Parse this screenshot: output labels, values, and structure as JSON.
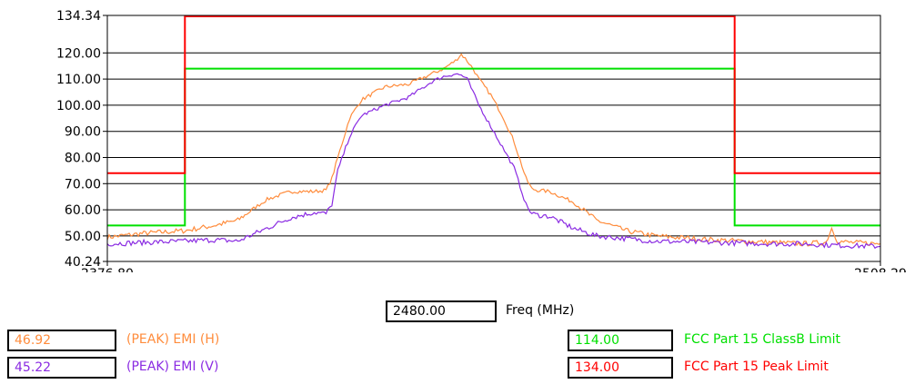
{
  "colors": {
    "emi_h": "#ff8c3c",
    "emi_v": "#8a2be2",
    "classb": "#00e000",
    "peak": "#ff0000",
    "grid": "#000000"
  },
  "cursor": {
    "value": "2480.00",
    "label": "Freq (MHz)"
  },
  "legend": [
    {
      "value": "46.92",
      "label": "(PEAK) EMI (H)",
      "color": "#ff8c3c"
    },
    {
      "value": "45.22",
      "label": "(PEAK) EMI (V)",
      "color": "#8a2be2"
    },
    {
      "value": "114.00",
      "label": "FCC Part 15 ClassB Limit",
      "color": "#00e000"
    },
    {
      "value": "134.00",
      "label": "FCC Part 15 Peak Limit",
      "color": "#ff0000"
    }
  ],
  "chart_data": {
    "type": "line",
    "xlabel": "Freq (MHz)",
    "xlim": [
      2376.8,
      2508.29
    ],
    "ylim": [
      40.24,
      134.34
    ],
    "y_ticks": [
      "134.34",
      "120.00",
      "110.00",
      "100.00",
      "90.00",
      "80.00",
      "70.00",
      "60.00",
      "50.00",
      "40.24"
    ],
    "x_ticks": [
      "2376.80",
      "2508.29"
    ],
    "grid": true,
    "series": [
      {
        "name": "(PEAK) EMI (H)",
        "color": "#ff8c3c",
        "x": [
          2376.8,
          2383,
          2390,
          2395,
          2399,
          2402,
          2404,
          2408,
          2412,
          2414,
          2415,
          2416,
          2418,
          2420,
          2424,
          2428,
          2430,
          2432,
          2434,
          2436,
          2437,
          2438,
          2439,
          2440,
          2442,
          2444,
          2446,
          2448,
          2449,
          2450,
          2452,
          2456,
          2460,
          2465,
          2470,
          2480,
          2490,
          2495,
          2499,
          2500,
          2501,
          2503,
          2508.29
        ],
        "y": [
          49.5,
          51,
          52,
          54,
          56,
          61,
          64,
          67,
          67,
          67.5,
          72,
          80,
          95,
          102,
          107,
          108,
          110,
          112,
          114,
          117,
          119.5,
          117,
          114,
          110,
          104,
          96,
          86,
          72,
          68,
          67.5,
          67,
          63,
          56,
          52,
          50,
          48.5,
          47.5,
          47,
          47.5,
          53,
          48,
          47.5,
          47
        ]
      },
      {
        "name": "(PEAK) EMI (V)",
        "color": "#8a2be2",
        "x": [
          2376.8,
          2383,
          2390,
          2395,
          2399,
          2401,
          2404,
          2408,
          2412,
          2414,
          2415,
          2416,
          2418,
          2420,
          2424,
          2428,
          2430,
          2432,
          2434,
          2436,
          2437,
          2438,
          2439,
          2440,
          2442,
          2444,
          2446,
          2448,
          2449,
          2450,
          2452,
          2456,
          2460,
          2465,
          2470,
          2480,
          2490,
          2495,
          2500,
          2508.29
        ],
        "y": [
          47,
          47.5,
          48,
          48.5,
          48,
          50,
          53,
          57,
          59,
          58.5,
          62,
          75,
          88,
          96,
          100,
          103,
          106,
          109,
          111,
          112,
          111.5,
          110,
          105,
          100,
          92,
          84,
          76,
          62,
          58.5,
          58,
          57.5,
          53,
          50,
          49,
          48,
          47.5,
          47,
          47,
          46.5,
          46
        ]
      },
      {
        "name": "FCC Part 15 ClassB Limit",
        "color": "#00e000",
        "x": [
          2376.8,
          2390,
          2390,
          2483.5,
          2483.5,
          2508.29
        ],
        "y": [
          54,
          54,
          114,
          114,
          54,
          54
        ]
      },
      {
        "name": "FCC Part 15 Peak Limit",
        "color": "#ff0000",
        "x": [
          2376.8,
          2390,
          2390,
          2483.5,
          2483.5,
          2508.29
        ],
        "y": [
          74,
          74,
          134,
          134,
          74,
          74
        ]
      }
    ]
  }
}
